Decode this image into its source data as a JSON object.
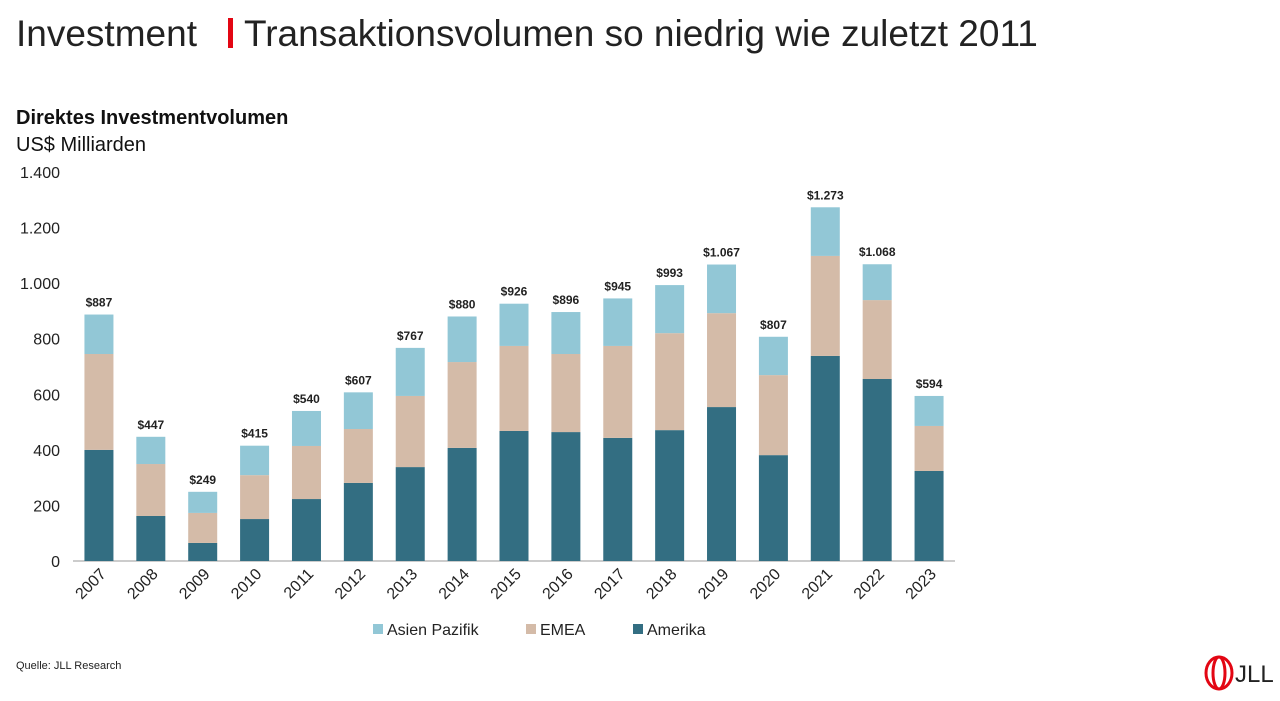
{
  "slide": {
    "headline_1": "Investment",
    "headline_2": "Transaktionsvolumen so niedrig wie zuletzt 2011",
    "source": "Quelle: JLL Research",
    "logo": "JLL"
  },
  "chart_data": {
    "type": "stacked_bar",
    "title": "Direktes Investmentvolumen",
    "subtitle": "US$ Milliarden",
    "categories": [
      "2007",
      "2008",
      "2009",
      "2010",
      "2011",
      "2012",
      "2013",
      "2014",
      "2015",
      "2016",
      "2017",
      "2018",
      "2019",
      "2020",
      "2021",
      "2022",
      "2023"
    ],
    "series": [
      {
        "name": "Asien Pazifik",
        "color": "#92c7d6",
        "values": [
          142,
          98,
          76,
          106,
          126,
          132,
          173,
          164,
          152,
          151,
          171,
          173,
          175,
          138,
          175,
          129,
          108
        ]
      },
      {
        "name": "EMEA",
        "color": "#d4bba8",
        "values": [
          345,
          187,
          108,
          158,
          191,
          194,
          256,
          309,
          306,
          281,
          331,
          349,
          338,
          288,
          360,
          284,
          162
        ]
      },
      {
        "name": "Amerika",
        "color": "#336e82",
        "values": [
          400,
          162,
          65,
          151,
          223,
          281,
          338,
          407,
          468,
          464,
          443,
          471,
          554,
          381,
          738,
          655,
          324
        ]
      }
    ],
    "totals": {
      "values": [
        887,
        447,
        249,
        415,
        540,
        607,
        767,
        880,
        926,
        896,
        945,
        993,
        1067,
        807,
        1273,
        1068,
        594
      ],
      "value_labels": [
        "$887",
        "$447",
        "$249",
        "$415",
        "$540",
        "$607",
        "$767",
        "$880",
        "$926",
        "$896",
        "$945",
        "$993",
        "$1.067",
        "$807",
        "$1.273",
        "$1.068",
        "$594"
      ]
    },
    "ylim": [
      0,
      1400
    ],
    "yticks": [
      0,
      200,
      400,
      600,
      800,
      {
        "value": 1000,
        "label": "1.000"
      },
      {
        "value": 1200,
        "label": "1.200"
      },
      {
        "value": 1400,
        "label": "1.400"
      }
    ],
    "grid": false,
    "legend": "bottom"
  }
}
